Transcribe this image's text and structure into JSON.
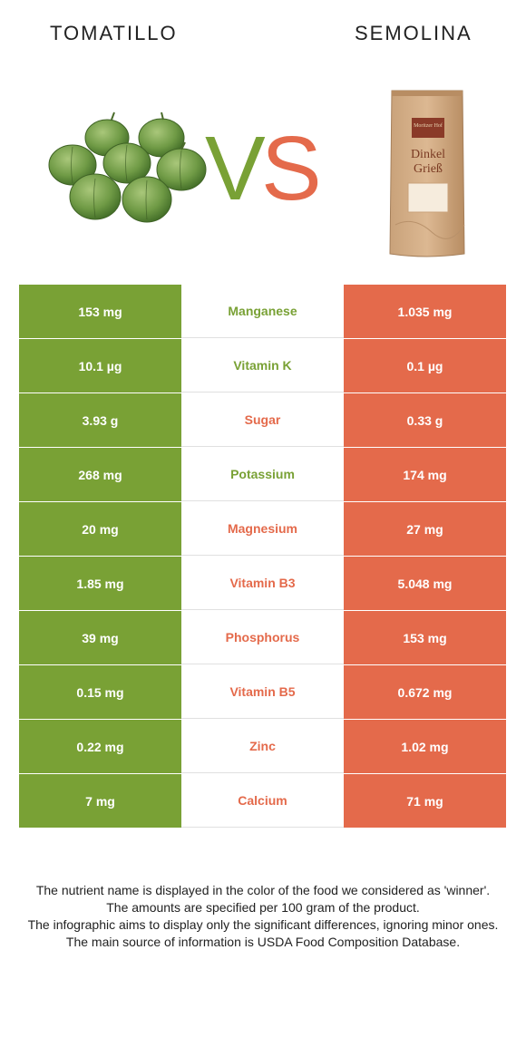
{
  "header": {
    "left_title": "TOMATILLO",
    "right_title": "SEMOLINA",
    "vs_left": "V",
    "vs_right": "S"
  },
  "colors": {
    "green": "#79a135",
    "orange": "#e46a4b"
  },
  "product": {
    "bag_line1": "Dinkel",
    "bag_line2": "Grieß",
    "bag_label": "Moritzer Hof"
  },
  "rows": [
    {
      "left": "153 mg",
      "name": "Manganese",
      "right": "1.035 mg",
      "winner": "green"
    },
    {
      "left": "10.1 µg",
      "name": "Vitamin K",
      "right": "0.1 µg",
      "winner": "green"
    },
    {
      "left": "3.93 g",
      "name": "Sugar",
      "right": "0.33 g",
      "winner": "orange"
    },
    {
      "left": "268 mg",
      "name": "Potassium",
      "right": "174 mg",
      "winner": "green"
    },
    {
      "left": "20 mg",
      "name": "Magnesium",
      "right": "27 mg",
      "winner": "orange"
    },
    {
      "left": "1.85 mg",
      "name": "Vitamin B3",
      "right": "5.048 mg",
      "winner": "orange"
    },
    {
      "left": "39 mg",
      "name": "Phosphorus",
      "right": "153 mg",
      "winner": "orange"
    },
    {
      "left": "0.15 mg",
      "name": "Vitamin B5",
      "right": "0.672 mg",
      "winner": "orange"
    },
    {
      "left": "0.22 mg",
      "name": "Zinc",
      "right": "1.02 mg",
      "winner": "orange"
    },
    {
      "left": "7 mg",
      "name": "Calcium",
      "right": "71 mg",
      "winner": "orange"
    }
  ],
  "footer": {
    "line1": "The nutrient name is displayed in the color of the food we considered as 'winner'.",
    "line2": "The amounts are specified per 100 gram of the product.",
    "line3": "The infographic aims to display only the significant differences, ignoring minor ones.",
    "line4": "The main source of information is USDA Food Composition Database."
  }
}
